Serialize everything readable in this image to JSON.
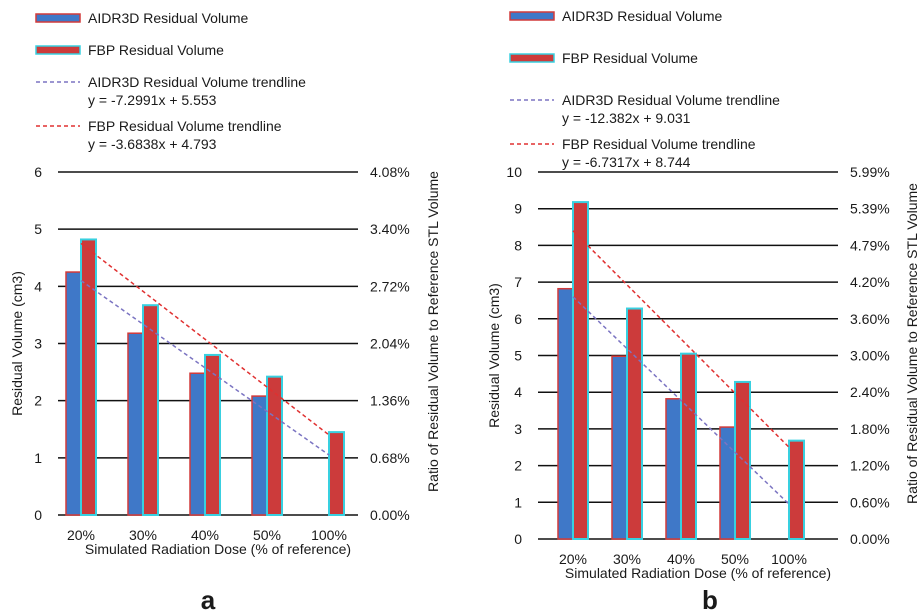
{
  "chart_data": [
    {
      "panel_label": "a",
      "type": "bar",
      "categories": [
        "20%",
        "30%",
        "40%",
        "50%",
        "100%"
      ],
      "series": [
        {
          "name": "AIDR3D Residual Volume",
          "values": [
            4.25,
            3.18,
            2.48,
            2.08,
            null
          ],
          "color": "#3f78c8",
          "edge": "#d23a3a"
        },
        {
          "name": "FBP Residual Volume",
          "values": [
            4.82,
            3.67,
            2.8,
            2.42,
            1.45
          ],
          "color": "#cc3b3b",
          "edge": "#38d0e0"
        }
      ],
      "trendlines": [
        {
          "name": "AIDR3D Residual Volume trendline",
          "equation": "y = -7.2991x  + 5.553",
          "color": "#7b74c2",
          "from_category": "20%",
          "to_category": "100%",
          "y_start": 4.1,
          "y_end": 1.05
        },
        {
          "name": "FBP Residual Volume trendline",
          "equation": "y = -3.6838x  + 4.793",
          "color": "#e03030",
          "from_category": "20%",
          "to_category": "100%",
          "y_start": 4.75,
          "y_end": 1.4
        }
      ],
      "xlabel": "Simulated Radiation Dose (% of reference)",
      "ylabel": "Residual Volume (cm3)",
      "ylim": [
        0,
        6
      ],
      "yticks": [
        "0",
        "1",
        "2",
        "3",
        "4",
        "5",
        "6"
      ],
      "y2label": "Ratio of Residual Volume to Reference STL Volume",
      "y2ticks": [
        "0.00%",
        "0.68%",
        "1.36%",
        "2.04%",
        "2.72%",
        "3.40%",
        "4.08%"
      ],
      "grid": true,
      "legend_position": "top"
    },
    {
      "panel_label": "b",
      "type": "bar",
      "categories": [
        "20%",
        "30%",
        "40%",
        "50%",
        "100%"
      ],
      "series": [
        {
          "name": "AIDR3D Residual Volume",
          "values": [
            6.82,
            4.98,
            3.82,
            3.05,
            null
          ],
          "color": "#3f78c8",
          "edge": "#d23a3a"
        },
        {
          "name": "FBP Residual Volume",
          "values": [
            9.18,
            6.28,
            5.05,
            4.28,
            2.68
          ],
          "color": "#cc3b3b",
          "edge": "#38d0e0"
        }
      ],
      "trendlines": [
        {
          "name": "AIDR3D Residual Volume trendline",
          "equation": "y = -12.382x  + 9.031",
          "color": "#7b74c2",
          "from_category": "20%",
          "to_category": "100%",
          "y_start": 6.6,
          "y_end": 0.95
        },
        {
          "name": "FBP Residual Volume trendline",
          "equation": "y = -6.7317x  + 8.744",
          "color": "#e03030",
          "from_category": "20%",
          "to_category": "100%",
          "y_start": 8.4,
          "y_end": 2.5
        }
      ],
      "xlabel": "Simulated Radiation Dose (% of reference)",
      "ylabel": "Residual Volume (cm3)",
      "ylim": [
        0,
        10
      ],
      "yticks": [
        "0",
        "1",
        "2",
        "3",
        "4",
        "5",
        "6",
        "7",
        "8",
        "9",
        "10"
      ],
      "y2label": "Ratio of Residual Volume to Reference STL Volume",
      "y2ticks": [
        "0.00%",
        "0.60%",
        "1.20%",
        "1.80%",
        "2.40%",
        "3.00%",
        "3.60%",
        "4.20%",
        "4.79%",
        "5.39%",
        "5.99%"
      ],
      "grid": true,
      "legend_position": "top"
    }
  ]
}
